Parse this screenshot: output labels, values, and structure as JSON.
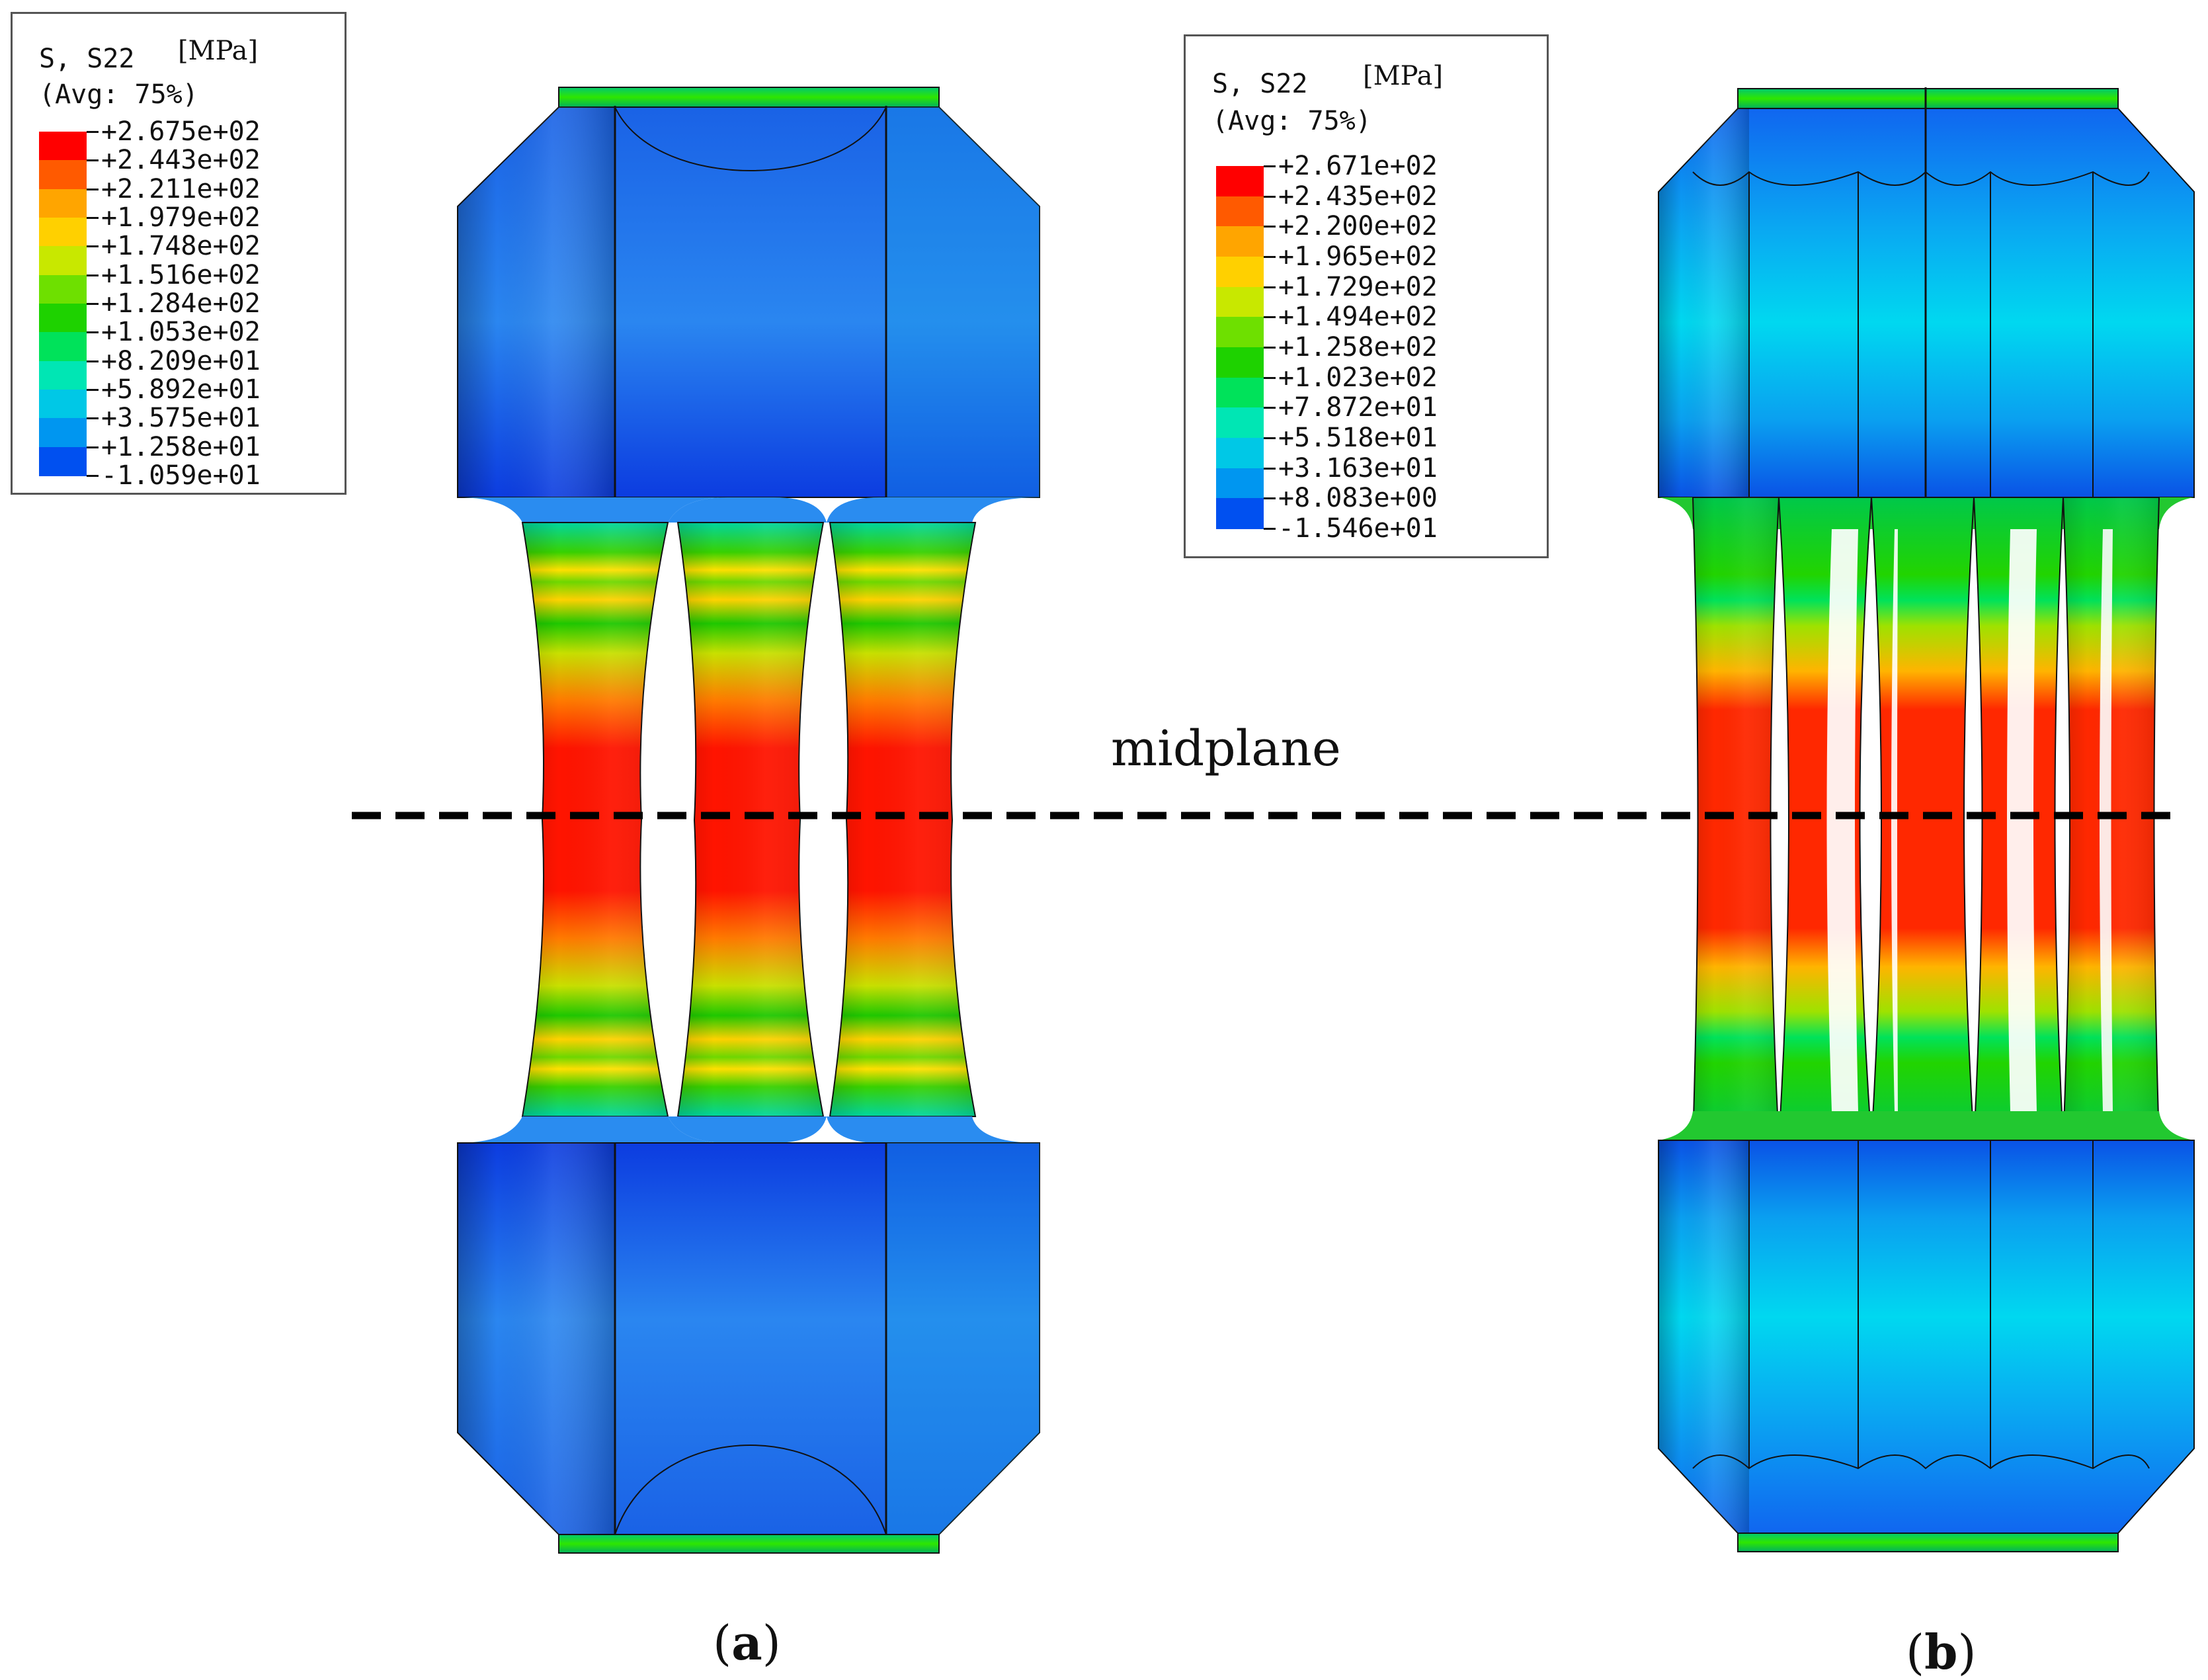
{
  "legends": {
    "a": {
      "variable": "S, S22",
      "unit": "[MPa]",
      "average": "(Avg: 75%)",
      "levels": [
        "+2.675e+02",
        "+2.443e+02",
        "+2.211e+02",
        "+1.979e+02",
        "+1.748e+02",
        "+1.516e+02",
        "+1.284e+02",
        "+1.053e+02",
        "+8.209e+01",
        "+5.892e+01",
        "+3.575e+01",
        "+1.258e+01",
        "-1.059e+01"
      ]
    },
    "b": {
      "variable": "S, S22",
      "unit": "[MPa]",
      "average": "(Avg: 75%)",
      "levels": [
        "+2.671e+02",
        "+2.435e+02",
        "+2.200e+02",
        "+1.965e+02",
        "+1.729e+02",
        "+1.494e+02",
        "+1.258e+02",
        "+1.023e+02",
        "+7.872e+01",
        "+5.518e+01",
        "+3.163e+01",
        "+8.083e+00",
        "-1.546e+01"
      ]
    }
  },
  "colormap": [
    "#ff0000",
    "#ff5a00",
    "#ffa500",
    "#ffd000",
    "#c8e800",
    "#6ee000",
    "#1ed200",
    "#00e25a",
    "#00e6b4",
    "#00c8e6",
    "#0096f0",
    "#0050f0"
  ],
  "midplane_label": "midplane",
  "panel_labels": {
    "a": {
      "open": "(",
      "letter": "a",
      "close": ")"
    },
    "b": {
      "open": "(",
      "letter": "b",
      "close": ")"
    }
  }
}
